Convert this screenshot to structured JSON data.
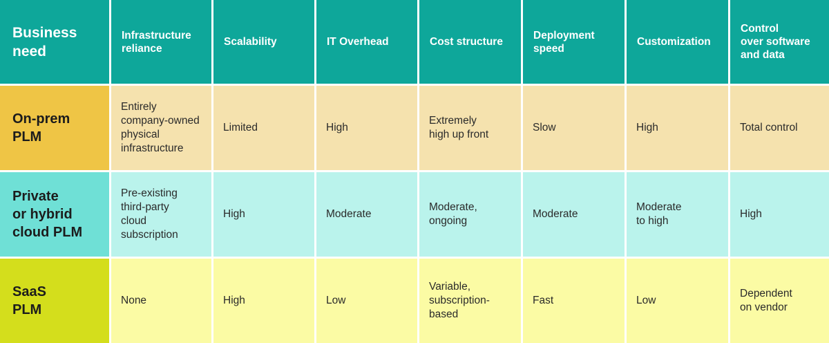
{
  "header": {
    "cells": [
      "Business\nneed",
      "Infrastructure\nreliance",
      "Scalability",
      "IT Overhead",
      "Cost structure",
      "Deployment\nspeed",
      "Customization",
      "Control\nover software\nand data"
    ]
  },
  "rows": [
    {
      "name": "On-prem\nPLM",
      "cells": [
        "Entirely\ncompany-owned\nphysical\ninfrastructure",
        "Limited",
        "High",
        "Extremely\nhigh up front",
        "Slow",
        "High",
        "Total control"
      ]
    },
    {
      "name": "Private\nor hybrid\ncloud PLM",
      "cells": [
        "Pre-existing\nthird-party\ncloud\nsubscription",
        "High",
        "Moderate",
        "Moderate,\nongoing",
        "Moderate",
        "Moderate\nto high",
        "High"
      ]
    },
    {
      "name": "SaaS\nPLM",
      "cells": [
        "None",
        "High",
        "Low",
        "Variable,\nsubscription-\nbased",
        "Fast",
        "Low",
        "Dependent\non vendor"
      ]
    }
  ],
  "colors": {
    "header": "#0ea79a",
    "onprem_head": "#efc545",
    "onprem": "#f5e2ae",
    "cloud_head": "#6fe0d6",
    "cloud": "#baf3ec",
    "saas_head": "#d4de1c",
    "saas": "#fbfba4"
  }
}
